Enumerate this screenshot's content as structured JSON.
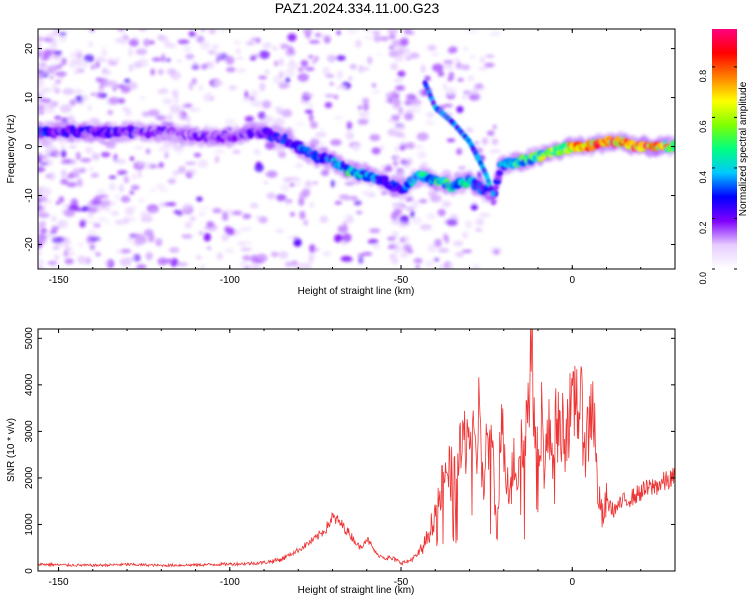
{
  "title": "PAZ1.2024.334.11.00.G23",
  "chart_data": [
    {
      "type": "heatmap",
      "xlabel": "Height of straight line (km)",
      "ylabel": "Frequency (Hz)",
      "xlim": [
        -156,
        30
      ],
      "ylim": [
        -25,
        24
      ],
      "xticks": [
        -150,
        -100,
        -50,
        0
      ],
      "yticks": [
        -20,
        -10,
        0,
        10,
        20
      ],
      "colorbar": {
        "label": "Normalized spectral amplitude",
        "range": [
          0,
          0.95
        ],
        "ticks": [
          "0.0",
          "0.2",
          "0.4",
          "0.6",
          "0.8"
        ],
        "colormap": [
          "#ffffff",
          "#e6ccff",
          "#8000ff",
          "#0000ff",
          "#00c8ff",
          "#00ff80",
          "#80ff00",
          "#ffff00",
          "#ff8000",
          "#ff0000",
          "#ff0080"
        ]
      },
      "ridge": {
        "x": [
          -153,
          -140,
          -130,
          -120,
          -110,
          -100,
          -92,
          -85,
          -80,
          -75,
          -70,
          -65,
          -60,
          -55,
          -50,
          -45,
          -40,
          -35,
          -30,
          -25,
          -23,
          -21,
          -15,
          -10,
          -5,
          0,
          5,
          10,
          15,
          20,
          25,
          30
        ],
        "y": [
          3,
          3,
          3,
          3,
          2,
          2,
          3,
          2,
          0,
          -2,
          -3,
          -5,
          -6,
          -7,
          -9,
          -6,
          -7,
          -8,
          -7,
          -9,
          -11,
          -4,
          -3,
          -2,
          -1,
          0,
          0,
          1,
          1,
          0,
          0,
          0
        ],
        "amplitude": [
          0.3,
          0.25,
          0.25,
          0.2,
          0.2,
          0.2,
          0.25,
          0.3,
          0.35,
          0.3,
          0.4,
          0.5,
          0.4,
          0.3,
          0.3,
          0.45,
          0.5,
          0.5,
          0.45,
          0.3,
          0.2,
          0.35,
          0.55,
          0.65,
          0.7,
          0.8,
          0.85,
          0.9,
          0.85,
          0.9,
          0.8,
          0.7
        ]
      },
      "branch": {
        "x": [
          -43,
          -40,
          -35,
          -30,
          -27,
          -25,
          -23
        ],
        "y": [
          13,
          8,
          5,
          1,
          -3,
          -6,
          -10
        ]
      }
    },
    {
      "type": "line",
      "xlabel": "Height of straight line (km)",
      "ylabel": "SNR (10 * v/v)",
      "xlim": [
        -156,
        30
      ],
      "ylim": [
        0,
        5200
      ],
      "xticks": [
        -150,
        -100,
        -50,
        0
      ],
      "yticks": [
        0,
        1000,
        2000,
        3000,
        4000,
        5000
      ],
      "color": "#ee3333",
      "series": [
        {
          "x": [
            -156,
            -150,
            -140,
            -130,
            -120,
            -110,
            -100,
            -95,
            -90,
            -85,
            -80,
            -75,
            -72,
            -70,
            -68,
            -65,
            -62,
            -60,
            -57,
            -55,
            -52,
            -50,
            -48,
            -45,
            -43,
            -41,
            -40,
            -38,
            -36,
            -34,
            -32,
            -30,
            -28,
            -27,
            -26,
            -25,
            -24,
            -23,
            -22,
            -21,
            -20,
            -19,
            -18,
            -17,
            -16,
            -15,
            -14,
            -13,
            -12,
            -11,
            -10,
            -9,
            -8,
            -7,
            -6,
            -5,
            -4,
            -3,
            -2,
            -1,
            0,
            1,
            2,
            3,
            4,
            5,
            6,
            7,
            8,
            9,
            10,
            12,
            15,
            18,
            20,
            25,
            30
          ],
          "y": [
            150,
            130,
            120,
            140,
            120,
            130,
            150,
            160,
            180,
            250,
            450,
            700,
            900,
            1150,
            1050,
            800,
            500,
            700,
            350,
            300,
            250,
            180,
            200,
            350,
            600,
            1000,
            1300,
            1800,
            2100,
            2000,
            2700,
            3100,
            2300,
            3900,
            1500,
            2800,
            2600,
            2200,
            600,
            3000,
            2700,
            2200,
            1600,
            2600,
            2000,
            3000,
            2500,
            3500,
            5150,
            3300,
            2800,
            3400,
            2200,
            3000,
            2600,
            3300,
            3000,
            3100,
            3000,
            3400,
            3200,
            3950,
            3500,
            3300,
            2700,
            3200,
            3900,
            2200,
            1400,
            1100,
            1500,
            1300,
            1500,
            1600,
            1700,
            1850,
            2000
          ]
        }
      ]
    }
  ]
}
